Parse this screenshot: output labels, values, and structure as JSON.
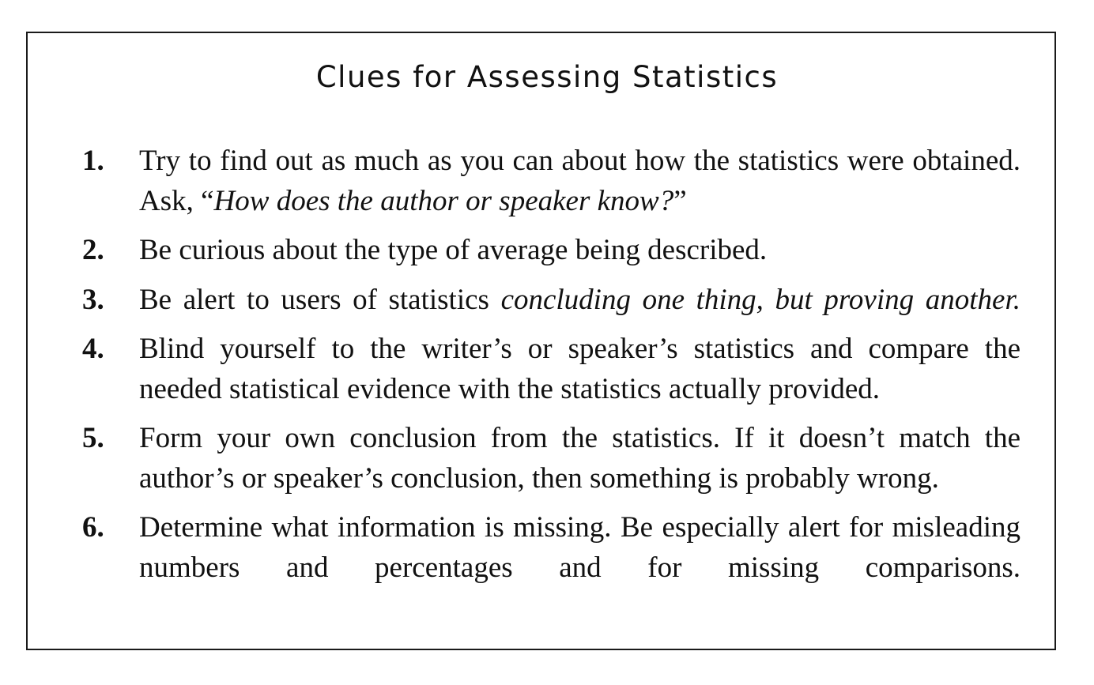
{
  "title": "Clues for Assessing Statistics",
  "items": [
    {
      "number": "1.",
      "text": "Try to find out as much as you can about how the statistics were obtained. Ask, “",
      "italic": "How does the author or speaker know?",
      "tail": "”"
    },
    {
      "number": "2.",
      "text": "Be curious about the type of average being described."
    },
    {
      "number": "3.",
      "text": "Be alert to users of statistics ",
      "italic": "concluding one thing, but proving another."
    },
    {
      "number": "4.",
      "text": "Blind yourself to the writer’s or speaker’s statistics and compare the needed statistical evidence with the statistics actually provided."
    },
    {
      "number": "5.",
      "text": "Form your own conclusion from the statistics. If it doesn’t match the author’s or speaker’s conclusion, then something is probably wrong."
    },
    {
      "number": "6.",
      "text": "Determine what information is missing. Be especially alert for misleading numbers and percentages and for missing comparisons."
    }
  ]
}
